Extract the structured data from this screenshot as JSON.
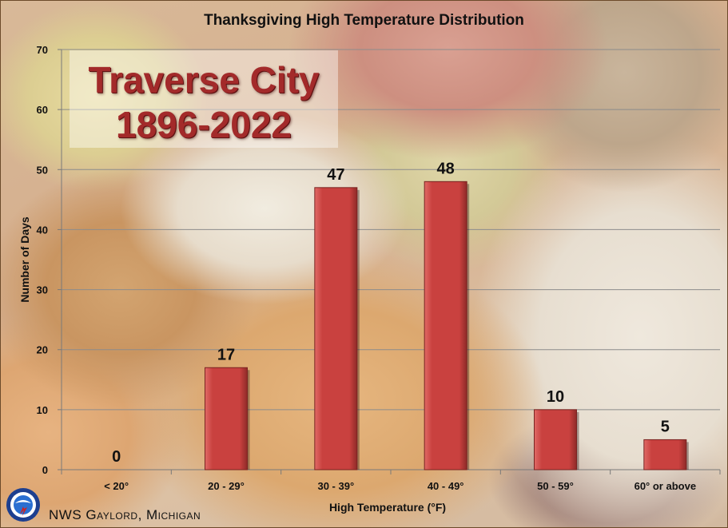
{
  "chart_data": {
    "type": "bar",
    "title": "Thanksgiving High Temperature Distribution",
    "xlabel": "High Temperature (°F)",
    "ylabel": "Number of Days",
    "categories": [
      "< 20°",
      "20 - 29°",
      "30 - 39°",
      "40 - 49°",
      "50 - 59°",
      "60° or above"
    ],
    "values": [
      0,
      17,
      47,
      48,
      10,
      5
    ],
    "ylim": [
      0,
      70
    ],
    "yticks": [
      0,
      10,
      20,
      30,
      40,
      50,
      60,
      70
    ],
    "grid": true,
    "bar_color": "#c9413f",
    "annotation": {
      "line1": "Traverse City",
      "line2": "1896-2022",
      "color": "#a32a2a"
    }
  },
  "footer": {
    "credit": "NWS Gaylord, Michigan",
    "logo_icon": "nws-logo-icon"
  }
}
